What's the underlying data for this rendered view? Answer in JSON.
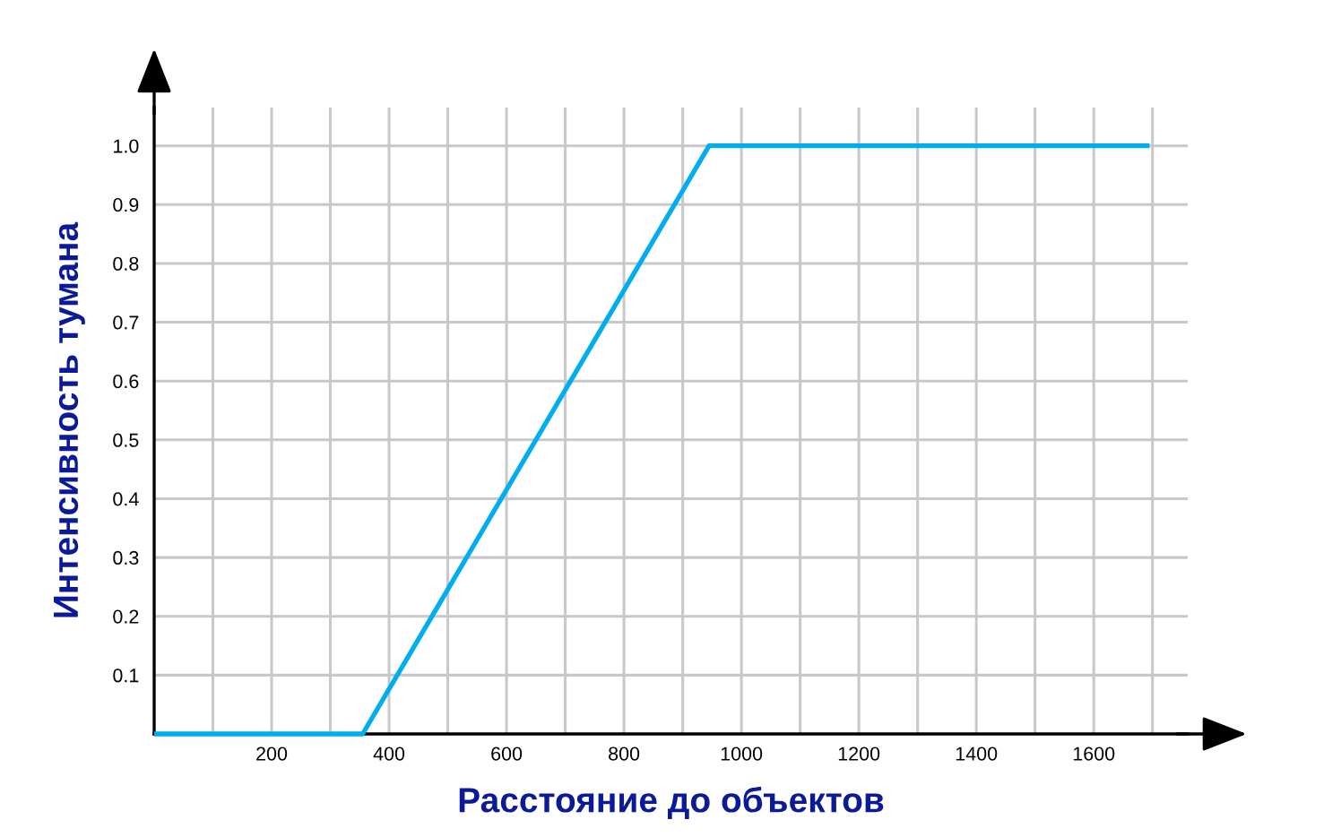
{
  "chart_data": {
    "type": "line",
    "xlabel": "Расстояние до объектов",
    "ylabel": "Интенсивность тумана",
    "x": [
      0,
      355,
      945,
      1695
    ],
    "series": [
      {
        "color": "#00aeef",
        "values": [
          0,
          0,
          1,
          1
        ]
      }
    ],
    "xlim": [
      0,
      1760
    ],
    "ylim": [
      0,
      1.065
    ],
    "xticks": [
      {
        "value": 100,
        "label": null
      },
      200,
      {
        "value": 300,
        "label": null
      },
      400,
      {
        "value": 500,
        "label": null
      },
      600,
      {
        "value": 700,
        "label": null
      },
      800,
      {
        "value": 900,
        "label": null
      },
      1000,
      {
        "value": 1100,
        "label": null
      },
      1200,
      {
        "value": 1300,
        "label": null
      },
      1400,
      {
        "value": 1500,
        "label": null
      },
      1600,
      {
        "value": 1700,
        "label": null
      }
    ],
    "yticks": [
      0.1,
      0.2,
      0.3,
      0.4,
      0.5,
      0.6,
      0.7,
      0.8,
      0.9,
      {
        "value": 1,
        "label": "1.0"
      }
    ],
    "grid": true,
    "line_style": "solid"
  }
}
